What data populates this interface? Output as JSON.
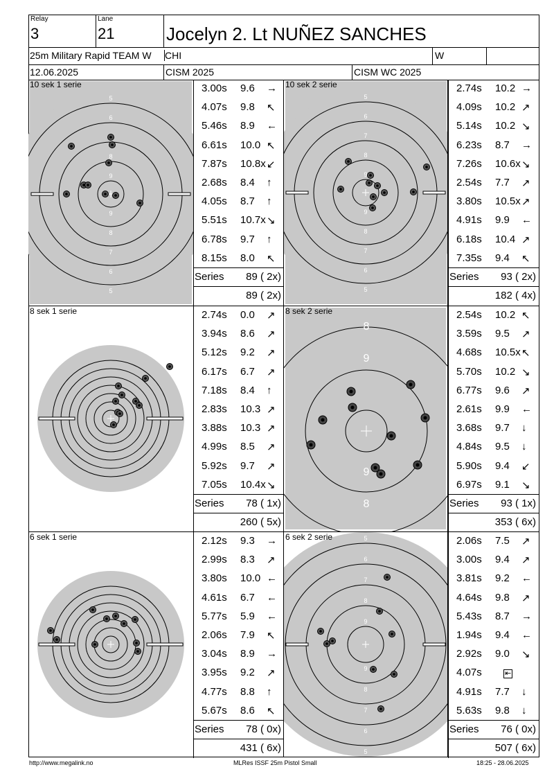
{
  "header": {
    "relay_label": "Relay",
    "relay": "3",
    "lane_label": "Lane",
    "lane": "21",
    "shooter": "Jocelyn 2. Lt NUÑEZ SANCHES",
    "event": "25m Military Rapid TEAM W",
    "nation": "CHI",
    "gender": "W",
    "date": "12.06.2025",
    "competition": "CISM 2025",
    "competition2": "CISM WC 2025"
  },
  "series": [
    {
      "name": "10 sek 1 serie",
      "shots": [
        {
          "time": "3.00s",
          "score": "9.6",
          "arrow": "right"
        },
        {
          "time": "4.07s",
          "score": "9.8",
          "arrow": "left-up"
        },
        {
          "time": "5.46s",
          "score": "8.9",
          "arrow": "left"
        },
        {
          "time": "6.61s",
          "score": "10.0",
          "arrow": "left-up"
        },
        {
          "time": "7.87s",
          "score": "10.8x",
          "arrow": "left-down"
        },
        {
          "time": "2.68s",
          "score": "8.4",
          "arrow": "up"
        },
        {
          "time": "4.05s",
          "score": "8.7",
          "arrow": "up"
        },
        {
          "time": "5.51s",
          "score": "10.7x",
          "arrow": "right-down"
        },
        {
          "time": "6.78s",
          "score": "9.7",
          "arrow": "up"
        },
        {
          "time": "8.15s",
          "score": "8.0",
          "arrow": "up-left"
        }
      ],
      "series_label": "Series",
      "series_total": "89 ( 2x)",
      "running_total": "89 ( 2x)"
    },
    {
      "name": "10 sek 2 serie",
      "shots": [
        {
          "time": "2.74s",
          "score": "10.2",
          "arrow": "right"
        },
        {
          "time": "4.09s",
          "score": "10.2",
          "arrow": "up-right"
        },
        {
          "time": "5.14s",
          "score": "10.2",
          "arrow": "down-right"
        },
        {
          "time": "6.23s",
          "score": "8.7",
          "arrow": "right"
        },
        {
          "time": "7.26s",
          "score": "10.6x",
          "arrow": "right-down"
        },
        {
          "time": "2.54s",
          "score": "7.7",
          "arrow": "right-up"
        },
        {
          "time": "3.80s",
          "score": "10.5x",
          "arrow": "up-right"
        },
        {
          "time": "4.91s",
          "score": "9.9",
          "arrow": "left"
        },
        {
          "time": "6.18s",
          "score": "10.4",
          "arrow": "right-up"
        },
        {
          "time": "7.35s",
          "score": "9.4",
          "arrow": "up-left"
        }
      ],
      "series_label": "Series",
      "series_total": "93 ( 2x)",
      "running_total": "182 ( 4x)"
    },
    {
      "name": "8 sek 1 serie",
      "shots": [
        {
          "time": "2.74s",
          "score": "0.0",
          "arrow": "right-up"
        },
        {
          "time": "3.94s",
          "score": "8.6",
          "arrow": "right-up"
        },
        {
          "time": "5.12s",
          "score": "9.2",
          "arrow": "up-right"
        },
        {
          "time": "6.17s",
          "score": "6.7",
          "arrow": "up-right"
        },
        {
          "time": "7.18s",
          "score": "8.4",
          "arrow": "up"
        },
        {
          "time": "2.83s",
          "score": "10.3",
          "arrow": "right-up"
        },
        {
          "time": "3.88s",
          "score": "10.3",
          "arrow": "right-up"
        },
        {
          "time": "4.99s",
          "score": "8.5",
          "arrow": "right-up"
        },
        {
          "time": "5.92s",
          "score": "9.7",
          "arrow": "up-right"
        },
        {
          "time": "7.05s",
          "score": "10.4x",
          "arrow": "down-right"
        }
      ],
      "series_label": "Series",
      "series_total": "78 ( 1x)",
      "running_total": "260 ( 5x)"
    },
    {
      "name": "8 sek 2 serie",
      "shots": [
        {
          "time": "2.54s",
          "score": "10.2",
          "arrow": "up-left"
        },
        {
          "time": "3.59s",
          "score": "9.5",
          "arrow": "right-up"
        },
        {
          "time": "4.68s",
          "score": "10.5x",
          "arrow": "left-up"
        },
        {
          "time": "5.70s",
          "score": "10.2",
          "arrow": "right-down"
        },
        {
          "time": "6.77s",
          "score": "9.6",
          "arrow": "right-up"
        },
        {
          "time": "2.61s",
          "score": "9.9",
          "arrow": "left"
        },
        {
          "time": "3.68s",
          "score": "9.7",
          "arrow": "down"
        },
        {
          "time": "4.84s",
          "score": "9.5",
          "arrow": "down"
        },
        {
          "time": "5.90s",
          "score": "9.4",
          "arrow": "left-down"
        },
        {
          "time": "6.97s",
          "score": "9.1",
          "arrow": "right-down"
        }
      ],
      "series_label": "Series",
      "series_total": "93 ( 1x)",
      "running_total": "353 ( 6x)"
    },
    {
      "name": "6 sek 1 serie",
      "shots": [
        {
          "time": "2.12s",
          "score": "9.3",
          "arrow": "right"
        },
        {
          "time": "2.99s",
          "score": "8.3",
          "arrow": "right-up"
        },
        {
          "time": "3.80s",
          "score": "10.0",
          "arrow": "left"
        },
        {
          "time": "4.61s",
          "score": "6.7",
          "arrow": "left"
        },
        {
          "time": "5.77s",
          "score": "5.9",
          "arrow": "left"
        },
        {
          "time": "2.06s",
          "score": "7.9",
          "arrow": "up-left"
        },
        {
          "time": "3.04s",
          "score": "8.9",
          "arrow": "right"
        },
        {
          "time": "3.95s",
          "score": "9.2",
          "arrow": "right-up"
        },
        {
          "time": "4.77s",
          "score": "8.8",
          "arrow": "up"
        },
        {
          "time": "5.67s",
          "score": "8.6",
          "arrow": "up-left"
        }
      ],
      "series_label": "Series",
      "series_total": "78 ( 0x)",
      "running_total": "431 ( 6x)"
    },
    {
      "name": "6 sek 2 serie",
      "shots": [
        {
          "time": "2.06s",
          "score": "7.5",
          "arrow": "up-right"
        },
        {
          "time": "3.00s",
          "score": "9.4",
          "arrow": "up-right"
        },
        {
          "time": "3.81s",
          "score": "9.2",
          "arrow": "left"
        },
        {
          "time": "4.64s",
          "score": "9.8",
          "arrow": "right-up"
        },
        {
          "time": "5.43s",
          "score": "8.7",
          "arrow": "right"
        },
        {
          "time": "1.94s",
          "score": "9.4",
          "arrow": "left"
        },
        {
          "time": "2.92s",
          "score": "9.0",
          "arrow": "right-down"
        },
        {
          "time": "4.07s",
          "score": "",
          "arrow": "box"
        },
        {
          "time": "4.91s",
          "score": "7.7",
          "arrow": "down"
        },
        {
          "time": "5.63s",
          "score": "9.8",
          "arrow": "down"
        }
      ],
      "series_label": "Series",
      "series_total": "76 ( 0x)",
      "running_total": "507 ( 6x)"
    }
  ],
  "footer": {
    "url": "http://www.megalink.no",
    "software": "MLRes ISSF 25m Pistol Small",
    "timestamp": "18:25 - 28.06.2025"
  }
}
